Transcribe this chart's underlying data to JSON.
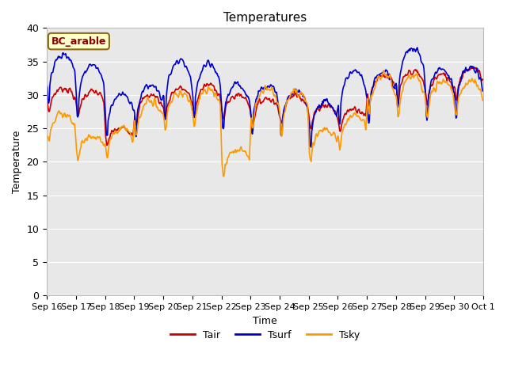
{
  "title": "Temperatures",
  "xlabel": "Time",
  "ylabel": "Temperature",
  "annotation": "BC_arable",
  "ylim": [
    0,
    40
  ],
  "series": {
    "Tair": {
      "color": "#cc0000",
      "linewidth": 1.2
    },
    "Tsurf": {
      "color": "#0000cc",
      "linewidth": 1.2
    },
    "Tsky": {
      "color": "#ff9900",
      "linewidth": 1.2
    }
  },
  "xtick_labels": [
    "Sep 16",
    "Sep 17",
    "Sep 18",
    "Sep 19",
    "Sep 20",
    "Sep 21",
    "Sep 22",
    "Sep 23",
    "Sep 24",
    "Sep 25",
    "Sep 26",
    "Sep 27",
    "Sep 28",
    "Sep 29",
    "Sep 30",
    "Oct 1"
  ],
  "ytick_vals": [
    0,
    5,
    10,
    15,
    20,
    25,
    30,
    35,
    40
  ],
  "bg_color": "#e8e8e8",
  "n_days": 15,
  "pts_per_day": 48
}
